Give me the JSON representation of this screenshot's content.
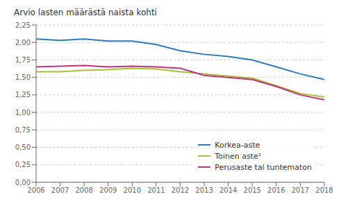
{
  "chart_data": {
    "type": "line",
    "title": "Arvio  lasten määrästä naista kohti",
    "x": [
      2006,
      2007,
      2008,
      2009,
      2010,
      2011,
      2012,
      2013,
      2014,
      2015,
      2016,
      2017,
      2018
    ],
    "xlim": [
      2006,
      2018
    ],
    "xticks": [
      2006,
      2007,
      2008,
      2009,
      2010,
      2011,
      2012,
      2013,
      2014,
      2015,
      2016,
      2017,
      2018
    ],
    "ylim": [
      0,
      2.25
    ],
    "yticks": [
      {
        "value": 0.0,
        "label": "0,00"
      },
      {
        "value": 0.25,
        "label": "0,25"
      },
      {
        "value": 0.5,
        "label": "0,50"
      },
      {
        "value": 0.75,
        "label": "0,75"
      },
      {
        "value": 1.0,
        "label": "1,00"
      },
      {
        "value": 1.25,
        "label": "1,25"
      },
      {
        "value": 1.5,
        "label": "1,50"
      },
      {
        "value": 1.75,
        "label": "1,75"
      },
      {
        "value": 2.0,
        "label": "2,00"
      },
      {
        "value": 2.25,
        "label": "2,25"
      }
    ],
    "grid": true,
    "legend": "lower right",
    "series": [
      {
        "name": "Korkea-aste",
        "color": "#3078BE",
        "values": [
          2.05,
          2.03,
          2.05,
          2.02,
          2.02,
          1.97,
          1.88,
          1.83,
          1.8,
          1.75,
          1.65,
          1.55,
          1.47
        ]
      },
      {
        "name": "Toinen aste¹",
        "color": "#AABD38",
        "values": [
          1.58,
          1.58,
          1.6,
          1.61,
          1.63,
          1.62,
          1.58,
          1.55,
          1.52,
          1.49,
          1.38,
          1.27,
          1.22
        ]
      },
      {
        "name": "Perusaste tai tuntematon",
        "color": "#BE3278",
        "values": [
          1.65,
          1.66,
          1.67,
          1.65,
          1.66,
          1.65,
          1.63,
          1.53,
          1.5,
          1.47,
          1.37,
          1.25,
          1.18
        ]
      }
    ]
  }
}
